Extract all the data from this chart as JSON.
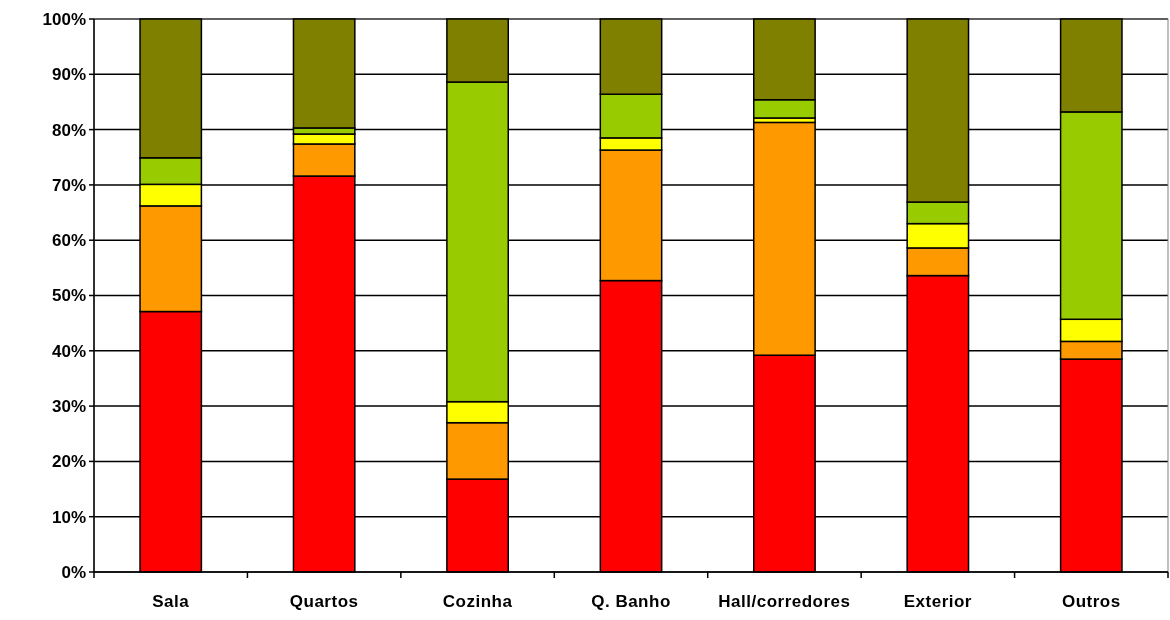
{
  "chart_data": {
    "type": "bar",
    "stacked": true,
    "categories": [
      "Sala",
      "Quartos",
      "Cozinha",
      "Q. Banho",
      "Hall/corredores",
      "Exterior",
      "Outros"
    ],
    "series": [
      {
        "color": "#ff0000",
        "values": [
          47.1,
          71.6,
          16.8,
          52.7,
          39.2,
          53.6,
          38.5
        ]
      },
      {
        "color": "#ff9900",
        "values": [
          19.1,
          5.8,
          10.2,
          23.6,
          42.1,
          5.0,
          3.2
        ]
      },
      {
        "color": "#ffff00",
        "values": [
          3.9,
          1.8,
          3.8,
          2.2,
          0.8,
          4.4,
          4.0
        ]
      },
      {
        "color": "#99cc00",
        "values": [
          4.8,
          1.1,
          57.8,
          7.9,
          3.3,
          3.9,
          37.5
        ]
      },
      {
        "color": "#808000",
        "values": [
          25.1,
          19.7,
          11.4,
          13.6,
          14.6,
          33.1,
          16.8
        ]
      }
    ],
    "ylim": [
      0,
      100
    ],
    "yticks": [
      {
        "value": 0,
        "label": "0%"
      },
      {
        "value": 10,
        "label": "10%"
      },
      {
        "value": 20,
        "label": "20%"
      },
      {
        "value": 30,
        "label": "30%"
      },
      {
        "value": 40,
        "label": "40%"
      },
      {
        "value": 50,
        "label": "50%"
      },
      {
        "value": 60,
        "label": "60%"
      },
      {
        "value": 70,
        "label": "70%"
      },
      {
        "value": 80,
        "label": "80%"
      },
      {
        "value": 90,
        "label": "90%"
      },
      {
        "value": 100,
        "label": "100%"
      }
    ],
    "grid": "y"
  }
}
